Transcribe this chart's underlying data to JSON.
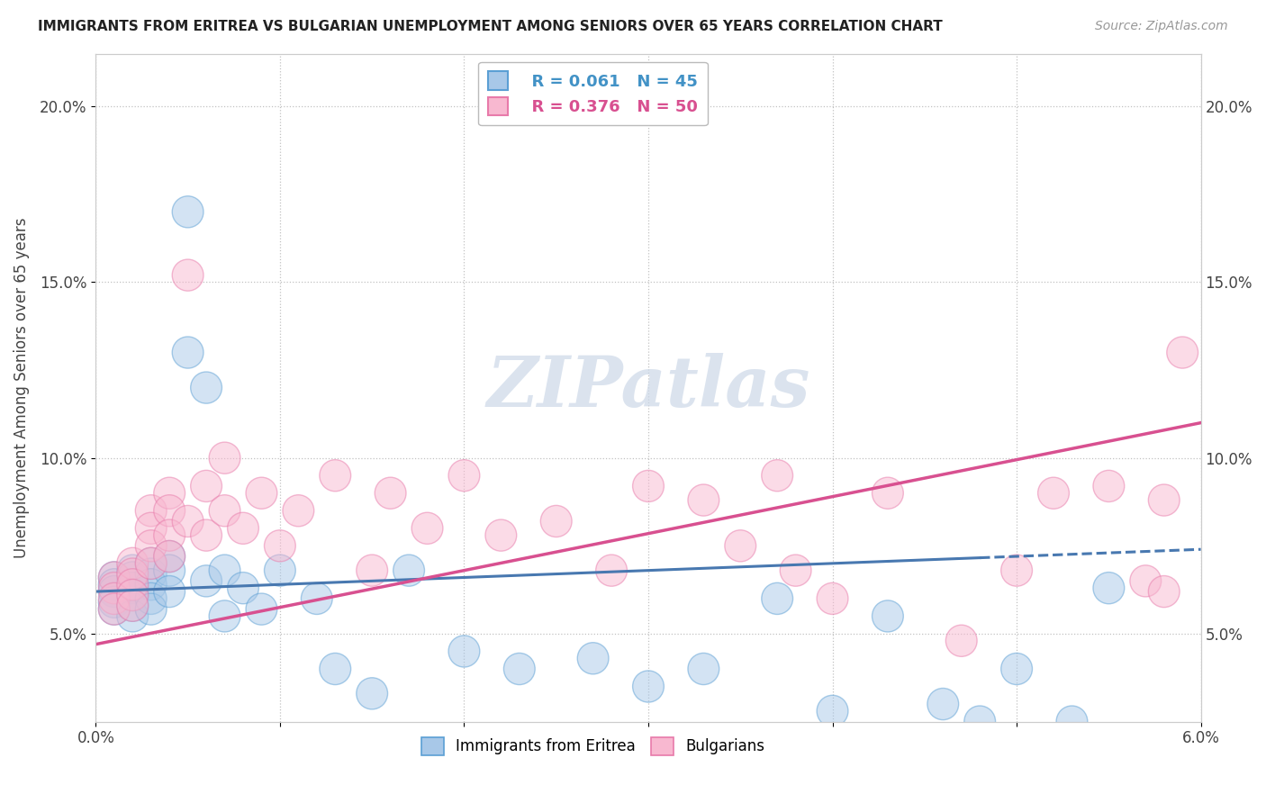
{
  "title": "IMMIGRANTS FROM ERITREA VS BULGARIAN UNEMPLOYMENT AMONG SENIORS OVER 65 YEARS CORRELATION CHART",
  "source": "Source: ZipAtlas.com",
  "ylabel": "Unemployment Among Seniors over 65 years",
  "xlim": [
    0.0,
    0.06
  ],
  "ylim": [
    0.025,
    0.215
  ],
  "yticks": [
    0.05,
    0.1,
    0.15,
    0.2
  ],
  "yticklabels": [
    "5.0%",
    "10.0%",
    "15.0%",
    "20.0%"
  ],
  "xticks": [
    0.0,
    0.01,
    0.02,
    0.03,
    0.04,
    0.05,
    0.06
  ],
  "legend_r1": "R = 0.061",
  "legend_n1": "N = 45",
  "legend_r2": "R = 0.376",
  "legend_n2": "N = 50",
  "color_eritrea_fill": "#a8c8e8",
  "color_eritrea_edge": "#5b9fd4",
  "color_bulgarian_fill": "#f8b8d0",
  "color_bulgarian_edge": "#e87aaa",
  "color_eritrea_line": "#4878b0",
  "color_bulgarian_line": "#d85090",
  "watermark_color": "#ccd8e8",
  "eritrea_x": [
    0.001,
    0.001,
    0.001,
    0.001,
    0.001,
    0.002,
    0.002,
    0.002,
    0.002,
    0.002,
    0.002,
    0.003,
    0.003,
    0.003,
    0.003,
    0.003,
    0.004,
    0.004,
    0.004,
    0.005,
    0.005,
    0.006,
    0.006,
    0.007,
    0.007,
    0.008,
    0.009,
    0.01,
    0.012,
    0.013,
    0.015,
    0.017,
    0.02,
    0.023,
    0.027,
    0.03,
    0.033,
    0.037,
    0.04,
    0.043,
    0.046,
    0.048,
    0.05,
    0.053,
    0.055
  ],
  "eritrea_y": [
    0.066,
    0.064,
    0.062,
    0.059,
    0.057,
    0.068,
    0.066,
    0.063,
    0.061,
    0.058,
    0.055,
    0.07,
    0.067,
    0.064,
    0.06,
    0.057,
    0.072,
    0.068,
    0.062,
    0.17,
    0.13,
    0.12,
    0.065,
    0.068,
    0.055,
    0.063,
    0.057,
    0.068,
    0.06,
    0.04,
    0.033,
    0.068,
    0.045,
    0.04,
    0.043,
    0.035,
    0.04,
    0.06,
    0.028,
    0.055,
    0.03,
    0.025,
    0.04,
    0.025,
    0.063
  ],
  "bulgarian_x": [
    0.001,
    0.001,
    0.001,
    0.001,
    0.002,
    0.002,
    0.002,
    0.002,
    0.002,
    0.003,
    0.003,
    0.003,
    0.003,
    0.004,
    0.004,
    0.004,
    0.004,
    0.005,
    0.005,
    0.006,
    0.006,
    0.007,
    0.007,
    0.008,
    0.009,
    0.01,
    0.011,
    0.013,
    0.015,
    0.016,
    0.018,
    0.02,
    0.022,
    0.025,
    0.028,
    0.03,
    0.033,
    0.035,
    0.037,
    0.038,
    0.04,
    0.043,
    0.047,
    0.05,
    0.052,
    0.055,
    0.057,
    0.058,
    0.059,
    0.058
  ],
  "bulgarian_y": [
    0.066,
    0.063,
    0.06,
    0.057,
    0.07,
    0.067,
    0.064,
    0.061,
    0.058,
    0.085,
    0.08,
    0.075,
    0.07,
    0.09,
    0.085,
    0.078,
    0.072,
    0.152,
    0.082,
    0.092,
    0.078,
    0.1,
    0.085,
    0.08,
    0.09,
    0.075,
    0.085,
    0.095,
    0.068,
    0.09,
    0.08,
    0.095,
    0.078,
    0.082,
    0.068,
    0.092,
    0.088,
    0.075,
    0.095,
    0.068,
    0.06,
    0.09,
    0.048,
    0.068,
    0.09,
    0.092,
    0.065,
    0.088,
    0.13,
    0.062
  ]
}
